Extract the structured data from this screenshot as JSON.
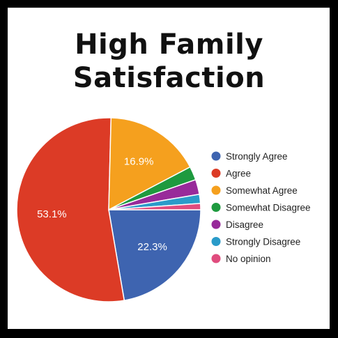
{
  "chart_data": {
    "type": "pie",
    "title": [
      "High Family",
      "Satisfaction"
    ],
    "legend_position": "right",
    "slices": [
      {
        "name": "Strongly Agree",
        "value": 22.3,
        "label": "22.3%",
        "color": "#3E64B0"
      },
      {
        "name": "Agree",
        "value": 53.1,
        "label": "53.1%",
        "color": "#DC3B26"
      },
      {
        "name": "Somewhat Agree",
        "value": 16.9,
        "label": "16.9%",
        "color": "#F5A01E"
      },
      {
        "name": "Somewhat Disagree",
        "value": 2.4,
        "label": "",
        "color": "#1E9A3F"
      },
      {
        "name": "Disagree",
        "value": 2.6,
        "label": "",
        "color": "#982A9A"
      },
      {
        "name": "Strongly Disagree",
        "value": 1.6,
        "label": "",
        "color": "#2A9BC9"
      },
      {
        "name": "No opinion",
        "value": 1.1,
        "label": "",
        "color": "#E04C7E"
      }
    ]
  }
}
